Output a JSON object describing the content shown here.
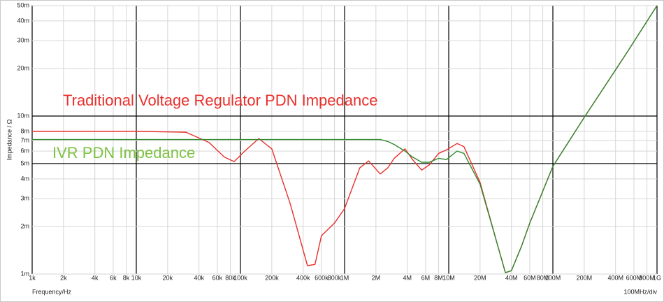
{
  "chart_data": {
    "type": "line",
    "xlabel": "Frequency/Hz",
    "ylabel": "Impedance / Ω",
    "scale_note": "100MHz/div",
    "log_x": true,
    "log_y": true,
    "grid": true,
    "annotations": [
      {
        "text": "Traditional Voltage Regulator PDN Impedance",
        "color": "#e8302c"
      },
      {
        "text": "IVR PDN Impedance",
        "color": "#7cc242"
      }
    ],
    "xlim": [
      1000,
      1000000000
    ],
    "ylim": [
      0.001,
      0.05
    ],
    "xticks": [
      {
        "value": 1000,
        "label": "1k"
      },
      {
        "value": 2000,
        "label": "2k"
      },
      {
        "value": 4000,
        "label": "4k"
      },
      {
        "value": 6000,
        "label": "6k"
      },
      {
        "value": 8000,
        "label": "8k"
      },
      {
        "value": 10000,
        "label": "10k"
      },
      {
        "value": 20000,
        "label": "20k"
      },
      {
        "value": 40000,
        "label": "40k"
      },
      {
        "value": 60000,
        "label": "60k"
      },
      {
        "value": 80000,
        "label": "80k"
      },
      {
        "value": 100000,
        "label": "100k"
      },
      {
        "value": 200000,
        "label": "200k"
      },
      {
        "value": 400000,
        "label": "400k"
      },
      {
        "value": 600000,
        "label": "600k"
      },
      {
        "value": 800000,
        "label": "800k"
      },
      {
        "value": 1000000,
        "label": "1M"
      },
      {
        "value": 2000000,
        "label": "2M"
      },
      {
        "value": 4000000,
        "label": "4M"
      },
      {
        "value": 6000000,
        "label": "6M"
      },
      {
        "value": 8000000,
        "label": "8M"
      },
      {
        "value": 10000000,
        "label": "10M"
      },
      {
        "value": 20000000,
        "label": "20M"
      },
      {
        "value": 40000000,
        "label": "40M"
      },
      {
        "value": 60000000,
        "label": "60M"
      },
      {
        "value": 80000000,
        "label": "80M"
      },
      {
        "value": 100000000,
        "label": "100M"
      },
      {
        "value": 200000000,
        "label": "200M"
      },
      {
        "value": 400000000,
        "label": "400M"
      },
      {
        "value": 600000000,
        "label": "600M"
      },
      {
        "value": 800000000,
        "label": "800M"
      },
      {
        "value": 1000000000,
        "label": "1G"
      }
    ],
    "yticks": [
      {
        "value": 0.001,
        "label": "1m"
      },
      {
        "value": 0.002,
        "label": "2m"
      },
      {
        "value": 0.003,
        "label": "3m"
      },
      {
        "value": 0.004,
        "label": "4m"
      },
      {
        "value": 0.005,
        "label": "5m",
        "major": true
      },
      {
        "value": 0.006,
        "label": "6m"
      },
      {
        "value": 0.007,
        "label": "7m"
      },
      {
        "value": 0.008,
        "label": "8m"
      },
      {
        "value": 0.01,
        "label": "10m",
        "major": true
      },
      {
        "value": 0.02,
        "label": "20m"
      },
      {
        "value": 0.03,
        "label": "30m"
      },
      {
        "value": 0.04,
        "label": "40m"
      },
      {
        "value": 0.05,
        "label": "50m"
      }
    ],
    "x": [
      1000,
      10000,
      30000,
      50000,
      70000,
      87000,
      110000,
      150000,
      200000,
      300000,
      440000,
      520000,
      600000,
      800000,
      1000000,
      1400000,
      1700000,
      2200000,
      2600000,
      3000000,
      3800000,
      4500000,
      5500000,
      6500000,
      8000000,
      9500000,
      12000000,
      14000000,
      20000000,
      30000000,
      35000000,
      40000000,
      50000000,
      60000000,
      100000000,
      200000000,
      500000000,
      1000000000
    ],
    "series": [
      {
        "color": "#e8302c",
        "values": [
          0.008,
          0.008,
          0.0079,
          0.0068,
          0.0055,
          0.00515,
          0.006,
          0.0072,
          0.0062,
          0.0028,
          0.00113,
          0.00115,
          0.00175,
          0.0021,
          0.0026,
          0.0047,
          0.0052,
          0.0043,
          0.0047,
          0.0054,
          0.0062,
          0.0053,
          0.00455,
          0.0049,
          0.0058,
          0.0061,
          0.0067,
          0.0064,
          0.0038,
          0.00146,
          0.00102,
          0.00105,
          0.0015,
          0.0021,
          0.0048,
          0.0098,
          0.0245,
          0.05
        ]
      },
      {
        "color": "#2f8a2f",
        "values": [
          0.0071,
          0.0071,
          0.0071,
          0.0071,
          0.0071,
          0.0071,
          0.0071,
          0.0071,
          0.0071,
          0.0071,
          0.0071,
          0.0071,
          0.0071,
          0.0071,
          0.0071,
          0.0071,
          0.0071,
          0.0071,
          0.0069,
          0.0066,
          0.006,
          0.0055,
          0.0051,
          0.0051,
          0.0054,
          0.0053,
          0.006,
          0.0058,
          0.0037,
          0.00146,
          0.00102,
          0.00105,
          0.0015,
          0.0021,
          0.0048,
          0.0098,
          0.0245,
          0.05
        ]
      }
    ]
  }
}
